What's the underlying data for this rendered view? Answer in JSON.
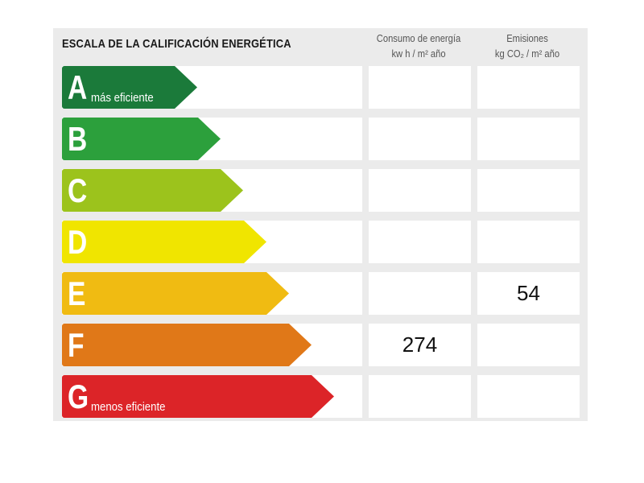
{
  "title": "ESCALA DE LA CALIFICACIÓN ENERGÉTICA",
  "headers": {
    "consumo_line1": "Consumo de energía",
    "consumo_line2": "kw h / m² año",
    "emisiones_line1": "Emisiones",
    "emisiones_line2": "kg CO₂ / m² año"
  },
  "ratings": [
    {
      "letter": "A",
      "label": "más eficiente",
      "color": "#1b7a3a",
      "consumo": "",
      "emisiones": ""
    },
    {
      "letter": "B",
      "label": "",
      "color": "#2ca03c",
      "consumo": "",
      "emisiones": ""
    },
    {
      "letter": "C",
      "label": "",
      "color": "#9cc31c",
      "consumo": "",
      "emisiones": ""
    },
    {
      "letter": "D",
      "label": "",
      "color": "#f0e500",
      "consumo": "",
      "emisiones": ""
    },
    {
      "letter": "E",
      "label": "",
      "color": "#f0bb12",
      "consumo": "",
      "emisiones": "54"
    },
    {
      "letter": "F",
      "label": "",
      "color": "#e07818",
      "consumo": "274",
      "emisiones": ""
    },
    {
      "letter": "G",
      "label": "menos eficiente",
      "color": "#dc2428",
      "consumo": "",
      "emisiones": ""
    }
  ]
}
